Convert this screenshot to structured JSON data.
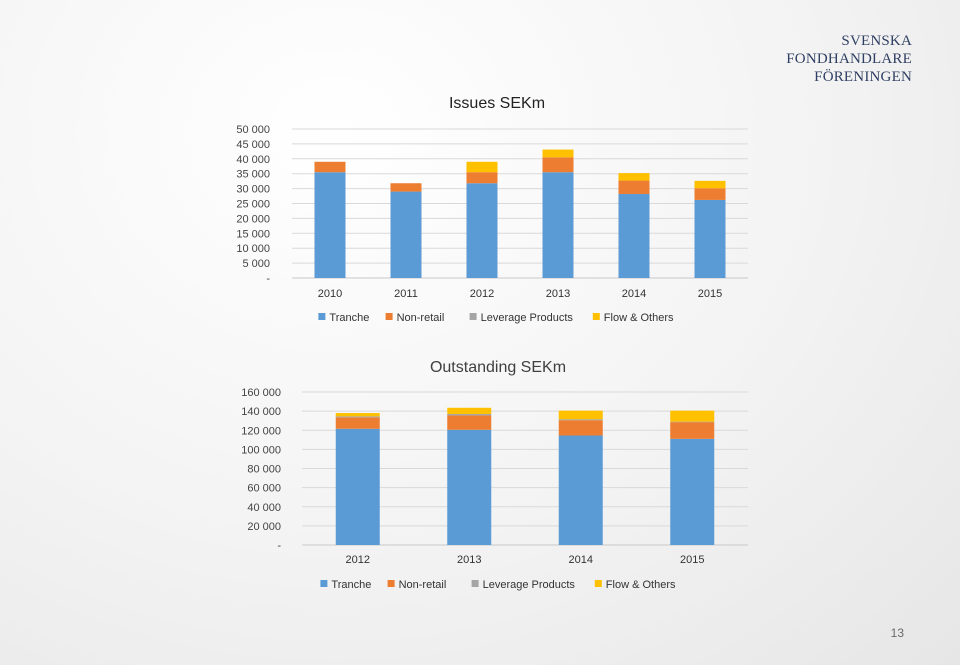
{
  "brand": {
    "line1": "SVENSKA",
    "line2": "FONDHANDLARE",
    "line3": "FÖRENINGEN"
  },
  "page_number": "13",
  "colors": {
    "Tranche": "#5b9bd5",
    "Non-retail": "#ed7d31",
    "Leverage Products": "#a5a5a5",
    "Flow & Others": "#ffc000"
  },
  "chart_data": [
    {
      "type": "bar",
      "stacked": true,
      "title": "Issues SEKm",
      "categories": [
        "2010",
        "2011",
        "2012",
        "2013",
        "2014",
        "2015"
      ],
      "ylim": [
        0,
        50000
      ],
      "yticks": [
        "-",
        "5 000",
        "10 000",
        "15 000",
        "20 000",
        "25 000",
        "30 000",
        "35 000",
        "40 000",
        "45 000",
        "50 000"
      ],
      "grid": true,
      "legend_position": "bottom",
      "series": [
        {
          "name": "Tranche",
          "values": [
            35500,
            29000,
            31800,
            35500,
            28200,
            26200
          ]
        },
        {
          "name": "Non-retail",
          "values": [
            3500,
            2800,
            3700,
            5000,
            4500,
            3900
          ]
        },
        {
          "name": "Leverage Products",
          "values": [
            0,
            0,
            0,
            0,
            0,
            0
          ]
        },
        {
          "name": "Flow & Others",
          "values": [
            0,
            0,
            3500,
            2600,
            2500,
            2500
          ]
        }
      ]
    },
    {
      "type": "bar",
      "stacked": true,
      "title": "Outstanding SEKm",
      "categories": [
        "2012",
        "2013",
        "2014",
        "2015"
      ],
      "ylim": [
        0,
        160000
      ],
      "yticks": [
        "-",
        "20 000",
        "40 000",
        "60 000",
        "80 000",
        "100 000",
        "120 000",
        "140 000",
        "160 000"
      ],
      "grid": true,
      "legend_position": "bottom",
      "series": [
        {
          "name": "Tranche",
          "values": [
            121500,
            120500,
            114500,
            111000
          ]
        },
        {
          "name": "Non-retail",
          "values": [
            12000,
            15000,
            16000,
            17500
          ]
        },
        {
          "name": "Leverage Products",
          "values": [
            1000,
            1500,
            1000,
            500
          ]
        },
        {
          "name": "Flow & Others",
          "values": [
            3500,
            6500,
            9000,
            11500
          ]
        }
      ]
    }
  ]
}
